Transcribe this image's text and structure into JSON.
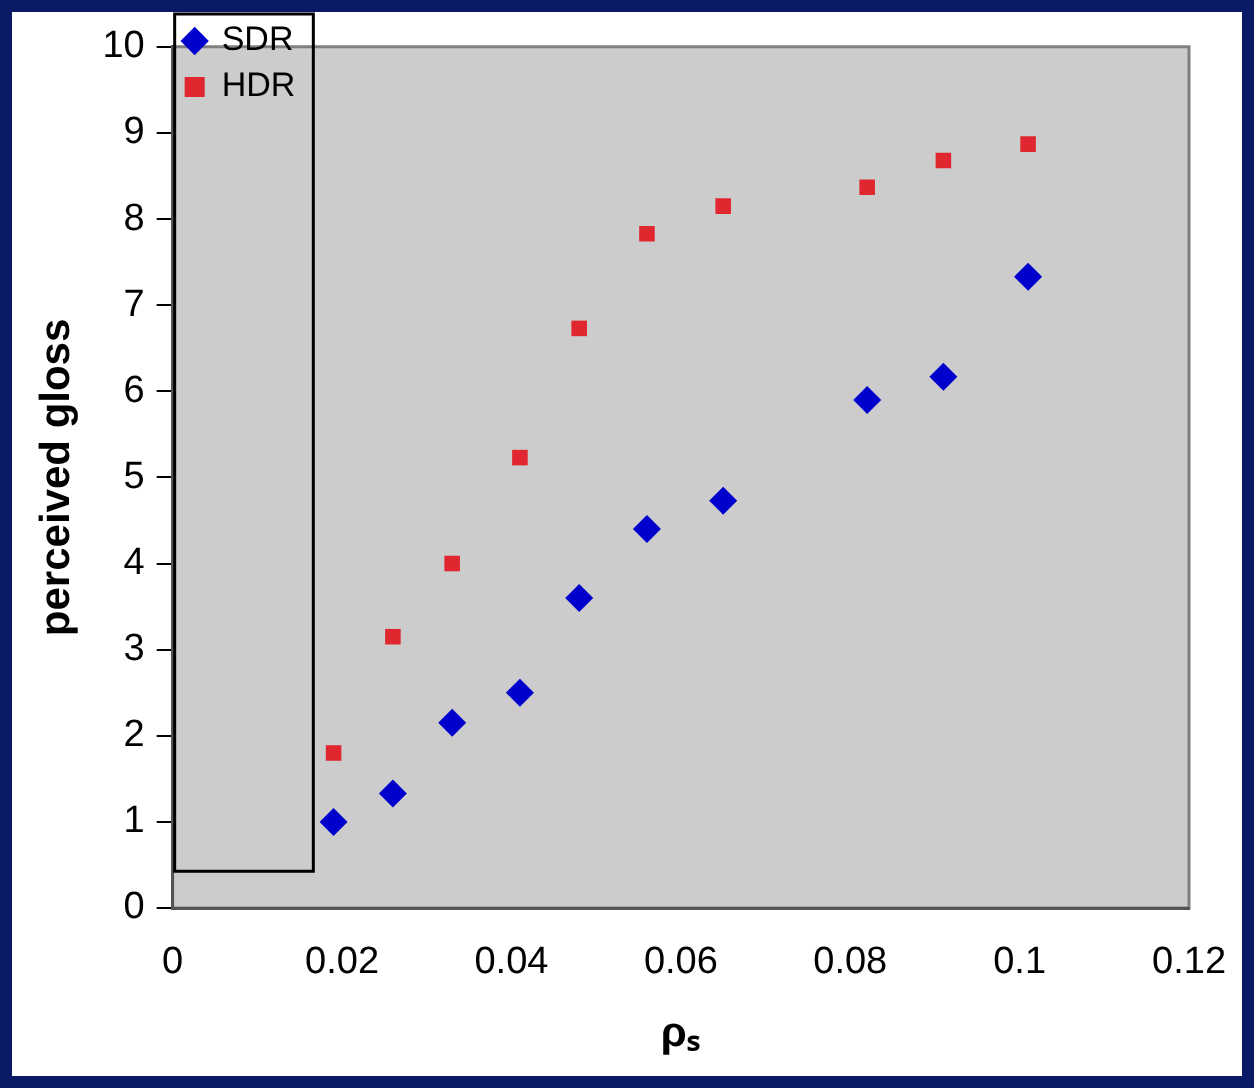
{
  "chart_data": {
    "type": "scatter",
    "xlabel": "ρₛ",
    "ylabel": "perceived gloss",
    "xlim": [
      0,
      0.12
    ],
    "xticks": [
      0,
      0.02,
      0.04,
      0.06,
      0.08,
      0.1,
      0.12
    ],
    "ylim": [
      0,
      10
    ],
    "yticks": [
      0,
      1,
      2,
      3,
      4,
      5,
      6,
      7,
      8,
      9,
      10
    ],
    "x": [
      0.019,
      0.026,
      0.033,
      0.041,
      0.048,
      0.056,
      0.065,
      0.082,
      0.091,
      0.101
    ],
    "grid": false,
    "legend": "top left",
    "series": [
      {
        "name": "SDR",
        "color": "#0000cc",
        "marker": "diamond",
        "values": [
          1.0,
          1.33,
          2.15,
          2.5,
          3.6,
          4.4,
          4.73,
          5.9,
          6.17,
          7.33
        ]
      },
      {
        "name": "HDR",
        "color": "#e0262e",
        "marker": "square",
        "values": [
          1.8,
          3.15,
          4.0,
          5.23,
          6.73,
          7.83,
          8.15,
          8.37,
          8.68,
          8.87
        ]
      }
    ]
  }
}
